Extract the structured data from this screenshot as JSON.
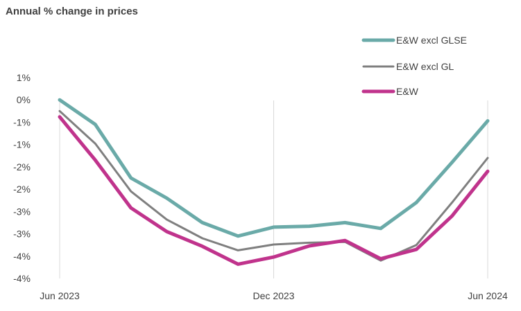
{
  "chart_data": {
    "type": "line",
    "title": "Annual % change in prices",
    "xlabel": "",
    "ylabel": "",
    "x_ticks": [
      "Jun 2023",
      "Dec 2023",
      "Jun 2024"
    ],
    "y_ticks": [
      "1%",
      "0%",
      "-1%",
      "-1%",
      "-2%",
      "-2%",
      "-3%",
      "-3%",
      "-4%",
      "-4%"
    ],
    "y_tick_values": [
      0.5,
      0.0,
      -0.5,
      -1.0,
      -1.5,
      -2.0,
      -2.5,
      -3.0,
      -3.5,
      -4.0
    ],
    "ylim": [
      -4.0,
      0.5
    ],
    "grid": "vertical-x",
    "legend_position": "top-right",
    "x": [
      "Jun 2023",
      "Jul 2023",
      "Aug 2023",
      "Sep 2023",
      "Oct 2023",
      "Nov 2023",
      "Dec 2023",
      "Jan 2024",
      "Feb 2024",
      "Mar 2024",
      "Apr 2024",
      "May 2024",
      "Jun 2024"
    ],
    "series": [
      {
        "name": "E&W excl GLSE",
        "color": "#6aaaa8",
        "values": [
          0.0,
          -0.55,
          -1.75,
          -2.2,
          -2.75,
          -3.05,
          -2.85,
          -2.83,
          -2.75,
          -2.88,
          -2.3,
          -1.4,
          -0.47
        ]
      },
      {
        "name": "E&W excl GL",
        "color": "#7f7f7f",
        "values": [
          -0.25,
          -0.98,
          -2.05,
          -2.68,
          -3.1,
          -3.37,
          -3.24,
          -3.2,
          -3.18,
          -3.6,
          -3.25,
          -2.3,
          -1.3
        ]
      },
      {
        "name": "E&W",
        "color": "#c0338c",
        "values": [
          -0.38,
          -1.35,
          -2.42,
          -2.95,
          -3.28,
          -3.68,
          -3.52,
          -3.27,
          -3.15,
          -3.56,
          -3.35,
          -2.6,
          -1.6
        ]
      }
    ]
  }
}
